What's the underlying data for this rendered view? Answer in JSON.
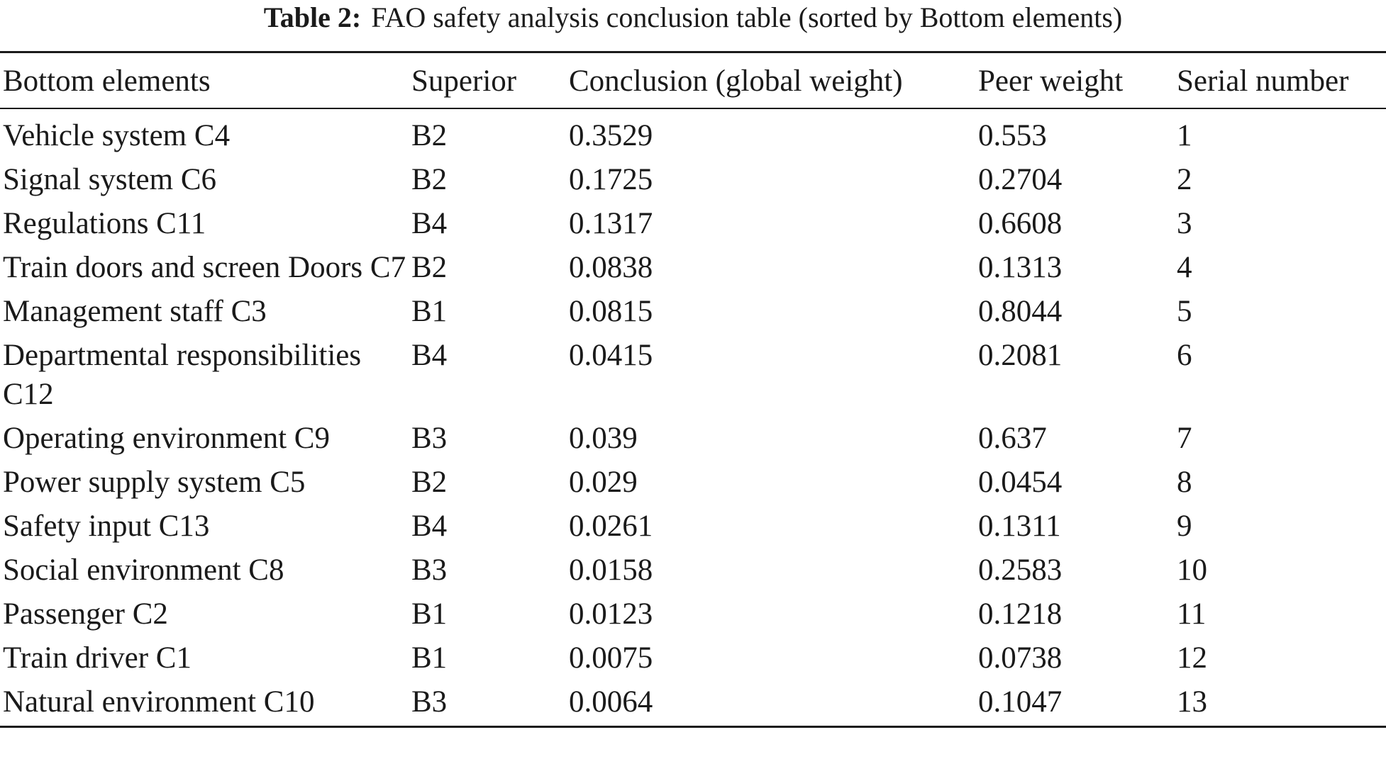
{
  "caption": {
    "label": "Table 2:",
    "text": "FAO safety analysis conclusion table (sorted by Bottom elements)"
  },
  "table": {
    "headers": [
      "Bottom elements",
      "Superior",
      "Conclusion (global weight)",
      "Peer weight",
      "Serial number"
    ],
    "rows": [
      [
        "Vehicle system C4",
        "B2",
        "0.3529",
        "0.553",
        "1"
      ],
      [
        "Signal system C6",
        "B2",
        "0.1725",
        "0.2704",
        "2"
      ],
      [
        "Regulations C11",
        "B4",
        "0.1317",
        "0.6608",
        "3"
      ],
      [
        "Train doors and screen Doors C7",
        "B2",
        "0.0838",
        "0.1313",
        "4"
      ],
      [
        "Management staff C3",
        "B1",
        "0.0815",
        "0.8044",
        "5"
      ],
      [
        "Departmental responsibilities C12",
        "B4",
        "0.0415",
        "0.2081",
        "6"
      ],
      [
        "Operating environment C9",
        "B3",
        "0.039",
        "0.637",
        "7"
      ],
      [
        "Power supply system C5",
        "B2",
        "0.029",
        "0.0454",
        "8"
      ],
      [
        "Safety input C13",
        "B4",
        "0.0261",
        "0.1311",
        "9"
      ],
      [
        "Social environment C8",
        "B3",
        "0.0158",
        "0.2583",
        "10"
      ],
      [
        "Passenger C2",
        "B1",
        "0.0123",
        "0.1218",
        "11"
      ],
      [
        "Train driver C1",
        "B1",
        "0.0075",
        "0.0738",
        "12"
      ],
      [
        "Natural environment C10",
        "B3",
        "0.0064",
        "0.1047",
        "13"
      ]
    ]
  }
}
